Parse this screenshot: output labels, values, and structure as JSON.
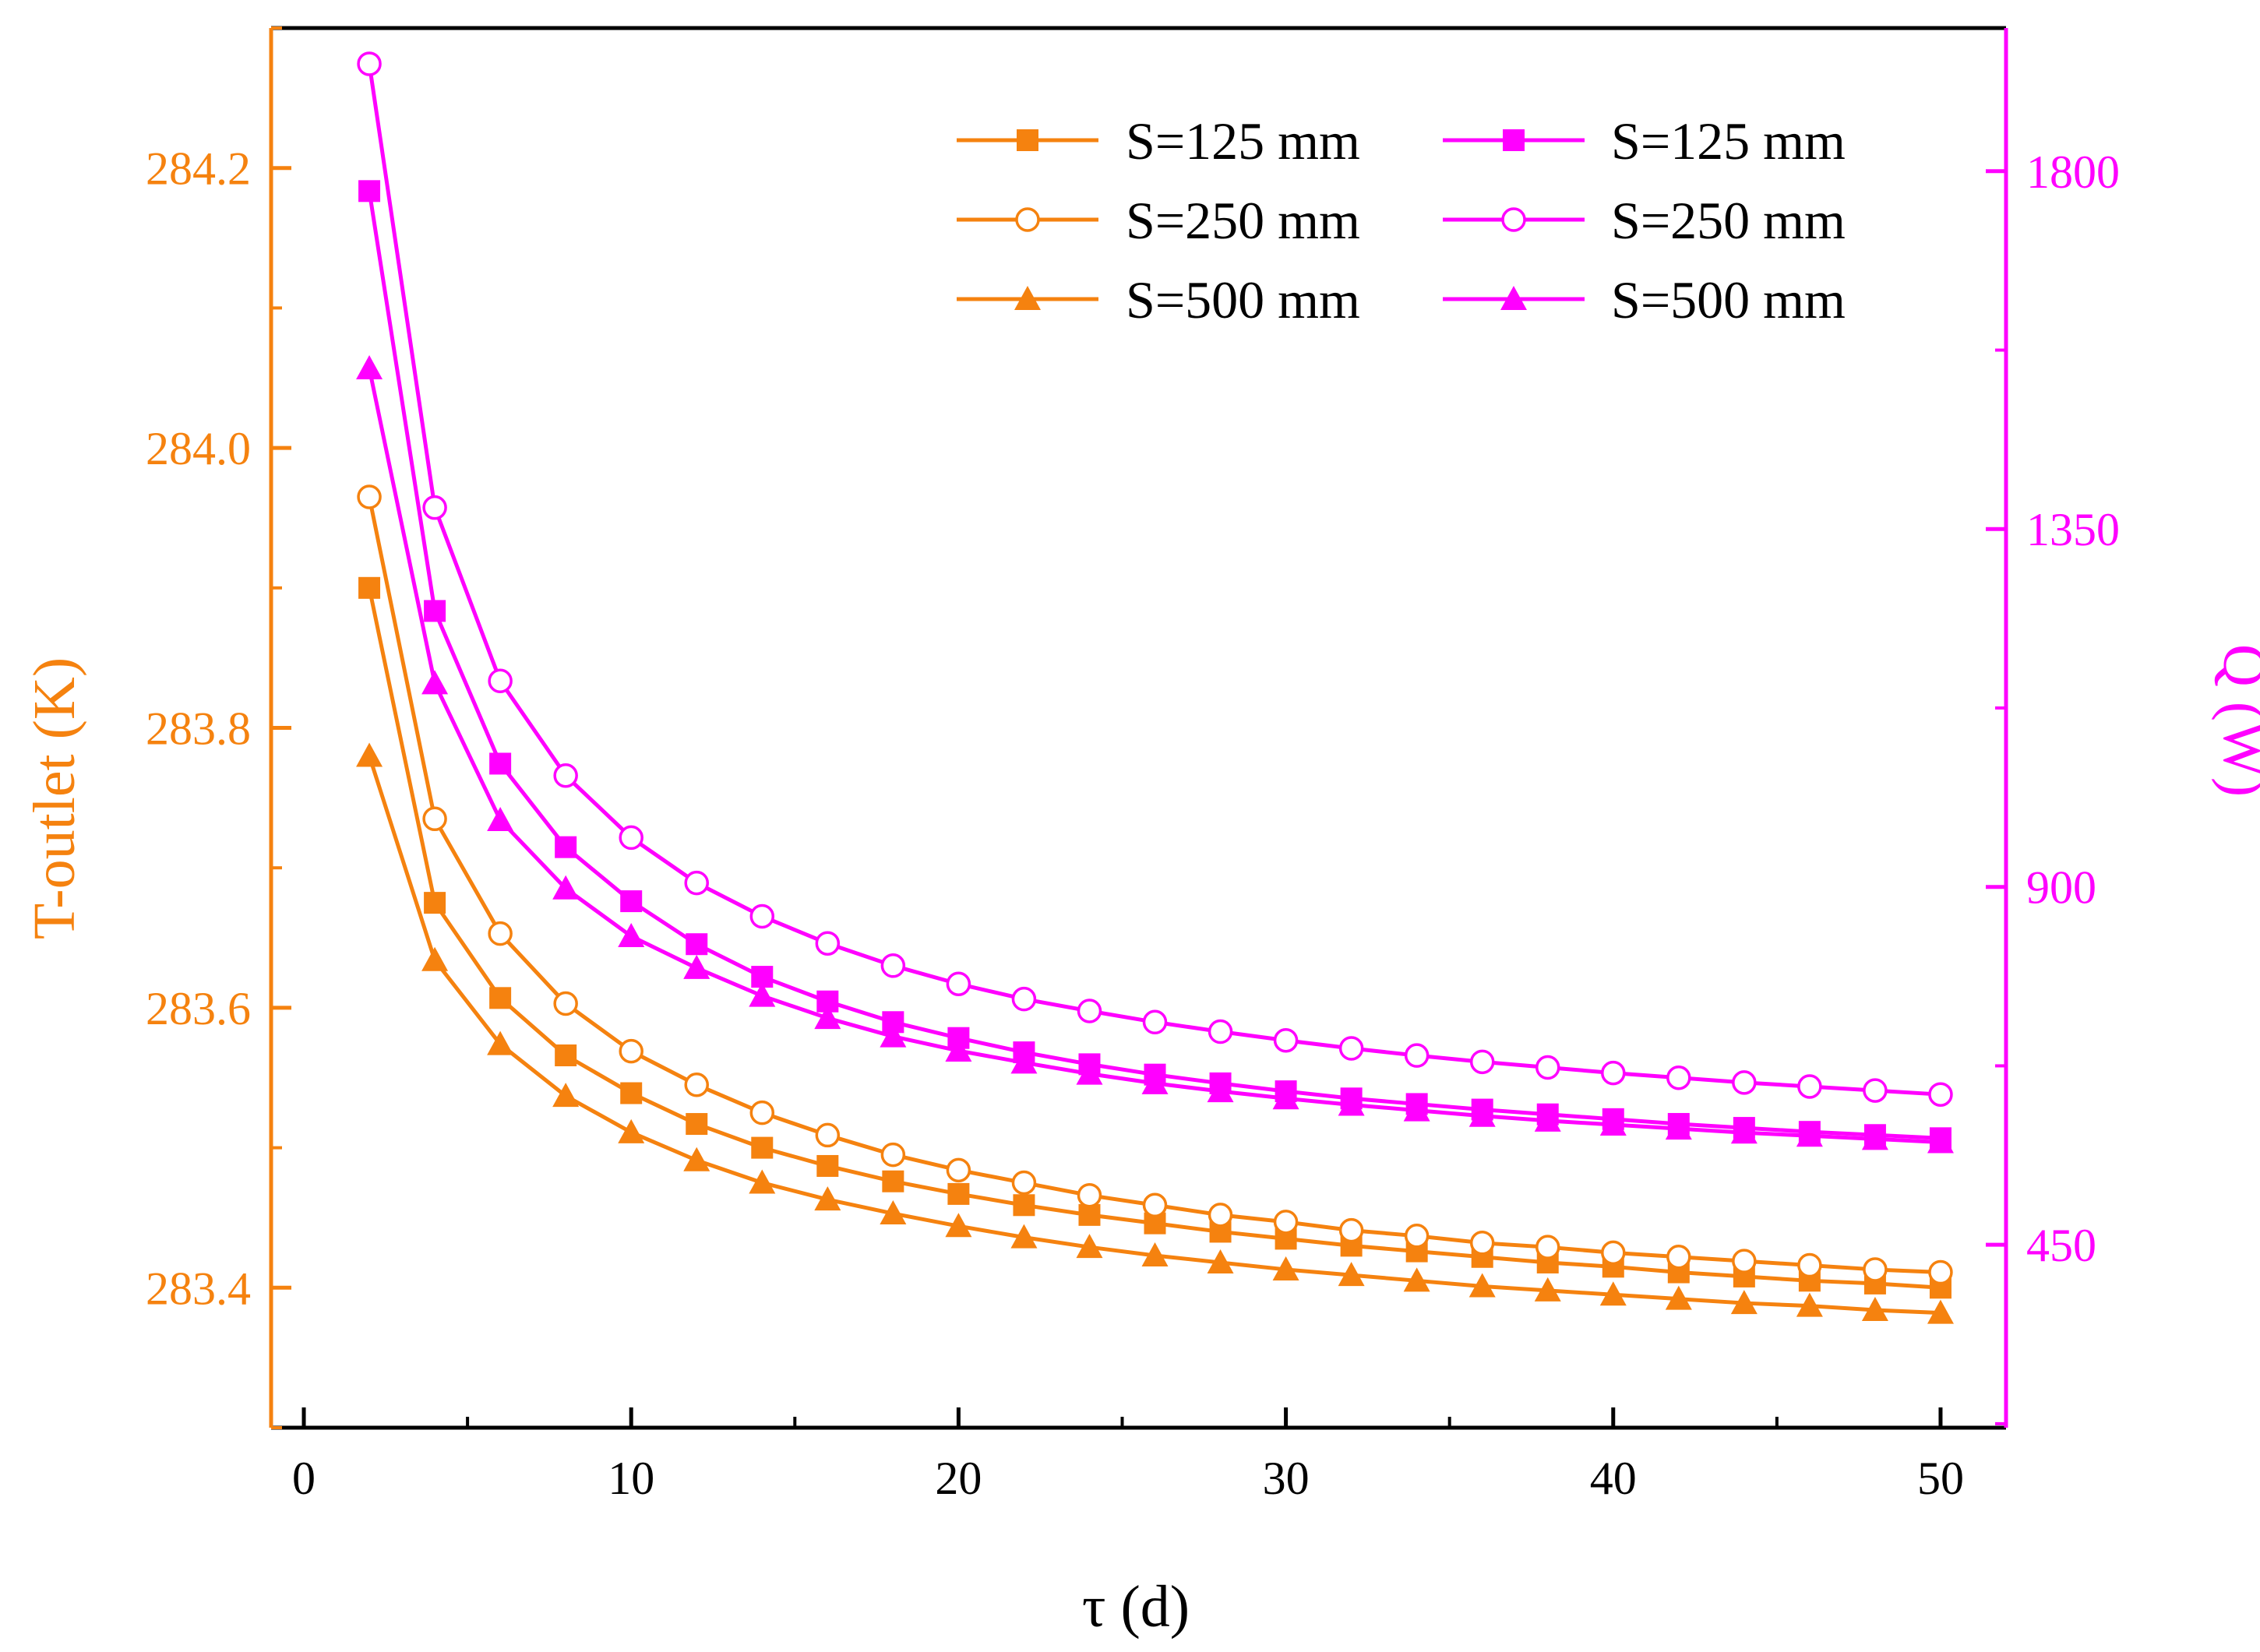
{
  "chart_data": {
    "type": "line",
    "title": "",
    "xlabel": "τ (d)",
    "ylabel_left": "T-outlet (K)",
    "ylabel_right": "Q (W)",
    "xlim": [
      -1,
      52
    ],
    "ylim_left": [
      283.3,
      284.3
    ],
    "ylim_right": [
      220,
      1980
    ],
    "x_ticks": [
      0,
      10,
      20,
      30,
      40,
      50
    ],
    "y_ticks_left": [
      283.4,
      283.6,
      283.8,
      284.0,
      284.2
    ],
    "y_ticks_right": [
      450,
      900,
      1350,
      1800
    ],
    "x": [
      2,
      4,
      6,
      8,
      10,
      12,
      14,
      16,
      18,
      20,
      22,
      24,
      26,
      28,
      30,
      32,
      34,
      36,
      38,
      40,
      42,
      44,
      46,
      48,
      50
    ],
    "colors": {
      "left_axis": "#F5820F",
      "right_axis": "#FF00FF",
      "frame": "#000000"
    },
    "legend_location": "top-right",
    "series": [
      {
        "name": "S=125 mm",
        "axis": "left",
        "marker": "square",
        "color": "#F5820F",
        "values": [
          283.9,
          283.675,
          283.607,
          283.566,
          283.539,
          283.517,
          283.5,
          283.487,
          283.476,
          283.467,
          283.459,
          283.452,
          283.446,
          283.44,
          283.435,
          283.43,
          283.426,
          283.422,
          283.418,
          283.415,
          283.411,
          283.408,
          283.405,
          283.403,
          283.4
        ]
      },
      {
        "name": "S=250 mm",
        "axis": "left",
        "marker": "circle-open",
        "color": "#F5820F",
        "values": [
          283.965,
          283.735,
          283.653,
          283.603,
          283.569,
          283.545,
          283.525,
          283.509,
          283.495,
          283.484,
          283.475,
          283.466,
          283.459,
          283.452,
          283.447,
          283.441,
          283.437,
          283.432,
          283.429,
          283.425,
          283.422,
          283.419,
          283.416,
          283.413,
          283.411
        ]
      },
      {
        "name": "S=500 mm",
        "axis": "left",
        "marker": "triangle",
        "color": "#F5820F",
        "values": [
          283.78,
          283.634,
          283.574,
          283.537,
          283.511,
          283.491,
          283.475,
          283.463,
          283.453,
          283.444,
          283.436,
          283.429,
          283.423,
          283.418,
          283.413,
          283.409,
          283.405,
          283.401,
          283.398,
          283.395,
          283.392,
          283.389,
          283.387,
          283.384,
          283.382
        ]
      },
      {
        "name": "S=125 mm",
        "axis": "right",
        "marker": "square",
        "color": "#FF00FF",
        "values": [
          1775,
          1247,
          1055,
          950,
          882,
          828,
          787,
          756,
          730,
          710,
          692,
          677,
          664,
          653,
          643,
          634,
          627,
          620,
          614,
          608,
          602,
          597,
          592,
          588,
          584
        ]
      },
      {
        "name": "S=250 mm",
        "axis": "right",
        "marker": "circle-open",
        "color": "#FF00FF",
        "values": [
          1935,
          1377,
          1159,
          1040,
          962,
          905,
          863,
          829,
          801,
          778,
          759,
          744,
          730,
          718,
          707,
          697,
          688,
          680,
          673,
          666,
          660,
          654,
          649,
          644,
          639
        ]
      },
      {
        "name": "S=500 mm",
        "axis": "right",
        "marker": "triangle",
        "color": "#FF00FF",
        "values": [
          1552,
          1156,
          984,
          898,
          838,
          798,
          763,
          735,
          712,
          694,
          679,
          665,
          653,
          643,
          634,
          626,
          619,
          612,
          606,
          601,
          596,
          591,
          587,
          583,
          579
        ]
      }
    ]
  }
}
